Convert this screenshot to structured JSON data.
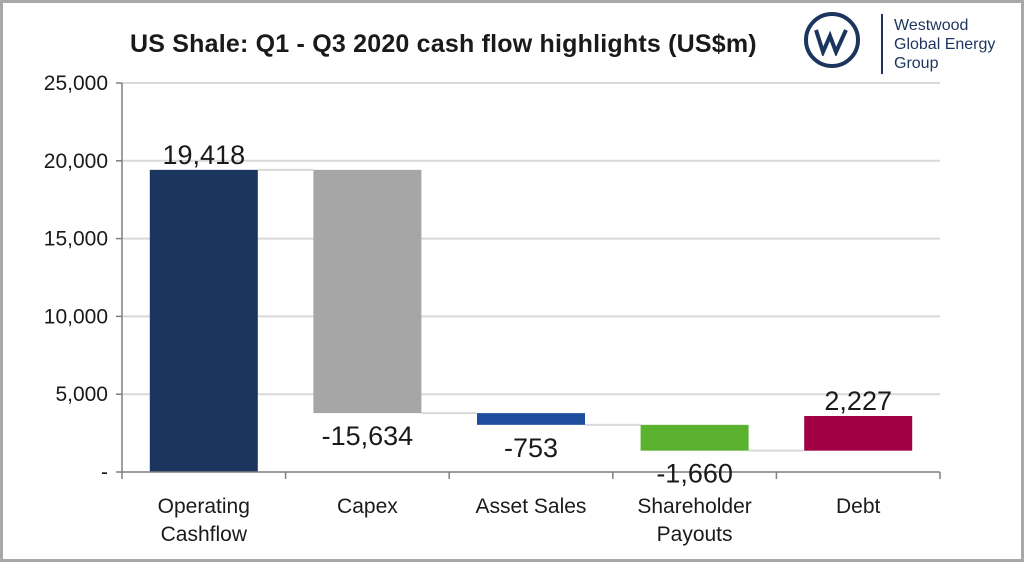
{
  "chart_data": {
    "type": "waterfall",
    "title": "US Shale: Q1 - Q3 2020 cash flow highlights (US$m)",
    "categories": [
      [
        "Operating",
        "Cashflow"
      ],
      [
        "Capex"
      ],
      [
        "Asset Sales"
      ],
      [
        "Shareholder",
        "Payouts"
      ],
      [
        "Debt"
      ]
    ],
    "values": [
      19418,
      -15634,
      -753,
      -1660,
      2227
    ],
    "labels": [
      "19,418",
      "-15,634",
      "-753",
      "-1,660",
      "2,227"
    ],
    "colors": [
      "#1c355e",
      "#a6a6a6",
      "#1f4e9e",
      "#5ab22f",
      "#a10045"
    ],
    "ylim": [
      0,
      25000
    ],
    "yticks": [
      0,
      5000,
      10000,
      15000,
      20000,
      25000
    ],
    "ytick_labels": [
      "-",
      "5,000",
      "10,000",
      "15,000",
      "20,000",
      "25,000"
    ],
    "grid": true,
    "xlabel": "",
    "ylabel": ""
  },
  "logo": {
    "lines": [
      "Westwood",
      "Global Energy",
      "Group"
    ]
  },
  "colors": {
    "brand": "#1c355e",
    "grid": "#d9d9d9",
    "connector": "#d9d9d9"
  }
}
